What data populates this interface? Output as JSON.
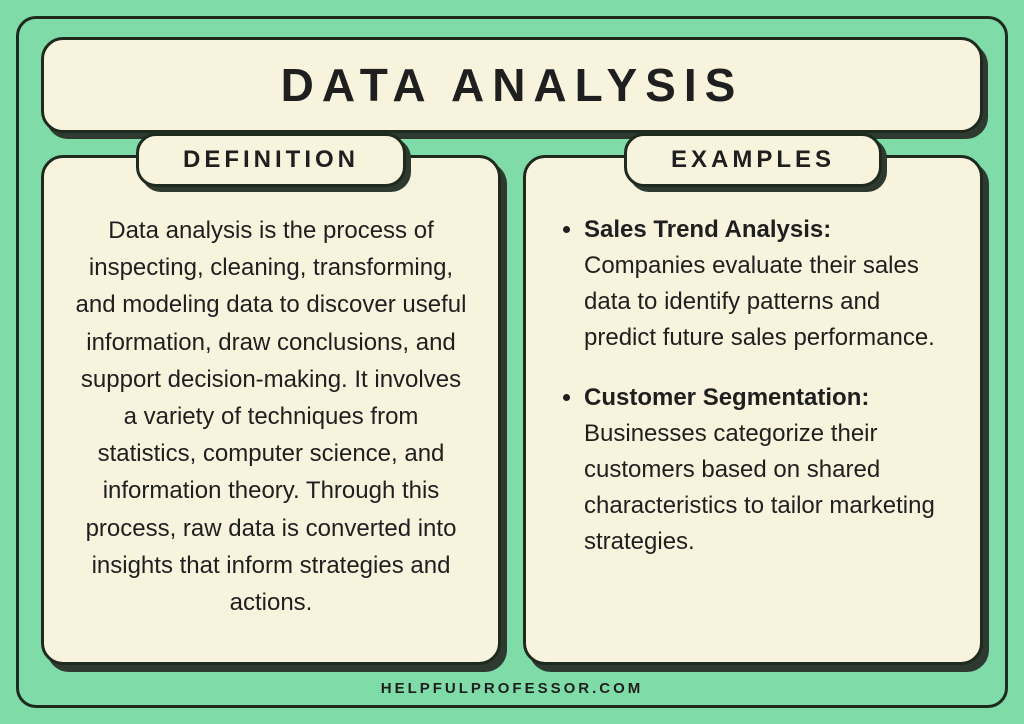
{
  "colors": {
    "background": "#7fdba7",
    "panel_bg": "#f8f3dd",
    "border": "#1f2a1f",
    "shadow": "#2e3a30",
    "text": "#1f1f1f"
  },
  "typography": {
    "title_fontsize": 46,
    "title_letter_spacing": 8,
    "label_fontsize": 24,
    "body_fontsize": 24,
    "footer_fontsize": 15
  },
  "title": "DATA ANALYSIS",
  "definition": {
    "label": "DEFINITION",
    "text": "Data analysis is the process of inspecting, cleaning, transforming, and modeling data to discover useful information, draw conclusions, and support decision-making. It involves a variety of techniques from statistics, computer science, and information theory. Through this process, raw data is converted into insights that inform strategies and actions."
  },
  "examples": {
    "label": "EXAMPLES",
    "items": [
      {
        "title": "Sales Trend Analysis:",
        "body": "Companies evaluate their sales data to identify patterns and predict future sales performance."
      },
      {
        "title": "Customer Segmentation:",
        "body": "Businesses categorize their customers based on shared characteristics to tailor marketing strategies."
      }
    ]
  },
  "footer": "HELPFULPROFESSOR.COM"
}
